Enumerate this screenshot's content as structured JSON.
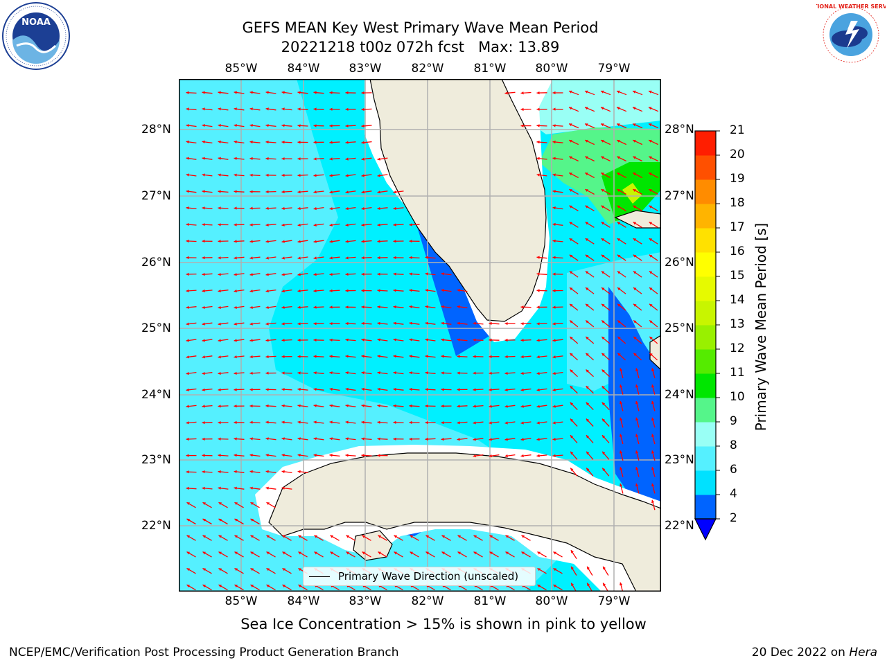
{
  "title": {
    "line1": "GEFS MEAN Key West Primary Wave Mean Period",
    "line2": "20221218 t00z 072h fcst   Max: 13.89"
  },
  "caption": "Sea Ice Concentration > 15% is shown in pink to yellow",
  "footer": {
    "left": "NCEP/EMC/Verification Post Processing Product Generation Branch",
    "right_prefix": "20 Dec 2022 on ",
    "right_host": "Hera"
  },
  "logos": {
    "left": {
      "icon": "noaa-logo",
      "text": "NOAA"
    },
    "right": {
      "icon": "national-weather-service-logo",
      "text": "NATIONAL WEATHER SERVICE"
    }
  },
  "map": {
    "longitude_labels": [
      "85°W",
      "84°W",
      "83°W",
      "82°W",
      "81°W",
      "80°W",
      "79°W"
    ],
    "latitude_labels": [
      "28°N",
      "27°N",
      "26°N",
      "25°N",
      "24°N",
      "23°N",
      "22°N"
    ],
    "legend_label": "Primary Wave Direction (unscaled)",
    "colors": {
      "land": "#efecdc",
      "coast": "#000000",
      "grid": "#b0b0b0",
      "arrows": "#ff0000"
    }
  },
  "colorbar": {
    "title": "Primary Wave Mean Period [s]",
    "ticks": [
      "2",
      "4",
      "6",
      "8",
      "9",
      "10",
      "11",
      "12",
      "13",
      "14",
      "15",
      "16",
      "17",
      "18",
      "19",
      "20",
      "21"
    ],
    "colors": [
      "#0064ff",
      "#00e1ff",
      "#55f0ff",
      "#99fff5",
      "#55f58a",
      "#00e600",
      "#55eb00",
      "#99f000",
      "#c8f500",
      "#e6fa00",
      "#ffff00",
      "#ffe100",
      "#ffb400",
      "#ff8c00",
      "#ff5000",
      "#ff1e00"
    ],
    "under_color": "#0000ff"
  }
}
